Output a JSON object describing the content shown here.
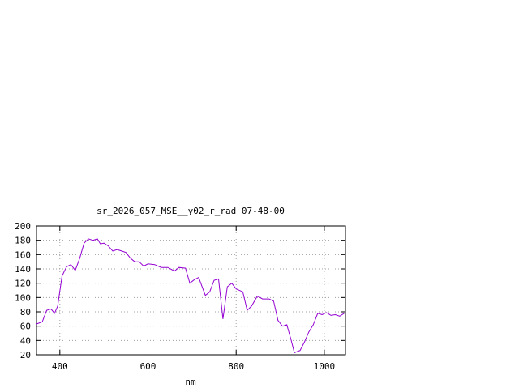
{
  "chart_data": {
    "type": "line",
    "title": "sr_2026_057_MSE__y02_r_rad 07-48-00",
    "x_label": "nm",
    "x": [
      347,
      360,
      370,
      380,
      388,
      395,
      405,
      415,
      425,
      435,
      445,
      455,
      465,
      475,
      485,
      492,
      500,
      510,
      520,
      530,
      540,
      550,
      560,
      570,
      580,
      590,
      600,
      615,
      630,
      645,
      660,
      670,
      685,
      695,
      705,
      715,
      730,
      740,
      750,
      760,
      770,
      780,
      790,
      800,
      815,
      825,
      835,
      848,
      860,
      875,
      885,
      895,
      905,
      915,
      925,
      932,
      945,
      955,
      965,
      975,
      985,
      995,
      1005,
      1015,
      1025,
      1035,
      1045
    ],
    "series": [
      {
        "color": "#9400d3",
        "values": [
          63,
          66,
          82,
          84,
          78,
          88,
          130,
          143,
          146,
          138,
          155,
          176,
          182,
          180,
          182,
          175,
          176,
          172,
          165,
          167,
          165,
          163,
          155,
          150,
          150,
          144,
          147,
          146,
          142,
          142,
          137,
          142,
          141,
          120,
          125,
          128,
          103,
          108,
          124,
          126,
          70,
          115,
          120,
          112,
          108,
          82,
          88,
          102,
          98,
          98,
          95,
          68,
          60,
          62,
          40,
          23,
          26,
          38,
          52,
          62,
          78,
          76,
          79,
          75,
          76,
          74,
          78
        ]
      }
    ],
    "xlim": [
      347,
      1048
    ],
    "ylim": [
      20,
      200
    ],
    "xticks": [
      400,
      600,
      800,
      1000
    ],
    "yticks": [
      20,
      40,
      60,
      80,
      100,
      120,
      140,
      160,
      180,
      200
    ],
    "grid": true
  }
}
